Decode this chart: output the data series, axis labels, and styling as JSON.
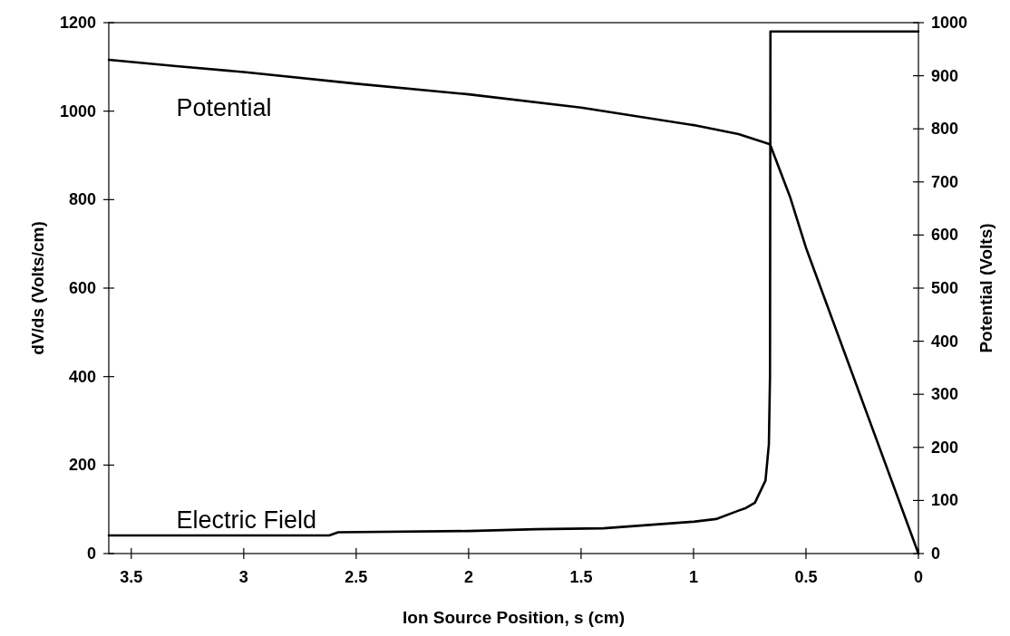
{
  "chart_data": {
    "type": "line",
    "xlabel": "Ion Source Position, s (cm)",
    "ylabel": "dV/ds (Volts/cm)",
    "y2label": "Potential (Volts)",
    "xlim": [
      3.6,
      0
    ],
    "xticks": [
      3.5,
      3,
      2.5,
      2,
      1.5,
      1,
      0.5,
      0
    ],
    "ylim": [
      0,
      1200
    ],
    "yticks": [
      0,
      200,
      400,
      600,
      800,
      1000,
      1200
    ],
    "y2lim": [
      0,
      1000
    ],
    "y2ticks": [
      0,
      100,
      200,
      300,
      400,
      500,
      600,
      700,
      800,
      900,
      1000
    ],
    "grid": false,
    "legend": false,
    "marker": "none",
    "line_style": "solid",
    "series": [
      {
        "name": "Electric Field",
        "color": "#000000",
        "x": [
          3.6,
          3.3,
          3.0,
          2.62,
          2.58,
          2.0,
          1.7,
          1.4,
          1.0,
          0.9,
          0.8,
          0.767,
          0.727,
          0.68,
          0.665,
          0.66,
          0.658,
          0
        ],
        "values": [
          41,
          41,
          41,
          41,
          48,
          51,
          55,
          57,
          72,
          78,
          97,
          103,
          115,
          165,
          247,
          400,
          1180,
          1180
        ]
      },
      {
        "name": "Potential",
        "color": "#000000",
        "axis": "y2",
        "x": [
          3.6,
          3.3,
          3.0,
          2.5,
          2.0,
          1.5,
          1.0,
          0.8,
          0.66,
          0.571,
          0.5,
          0
        ],
        "values": [
          930,
          918,
          907,
          885,
          865,
          840,
          807,
          790,
          771,
          672,
          576,
          0
        ]
      }
    ]
  }
}
